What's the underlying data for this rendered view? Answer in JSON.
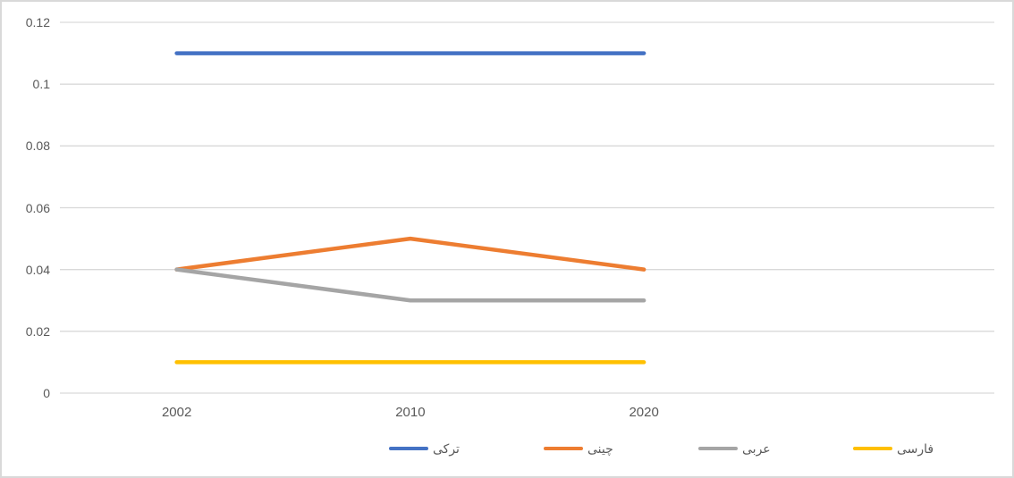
{
  "chart": {
    "background_color": "#FFFFFF",
    "border_color": "#D9D9D9",
    "gridline_color": "#D9D9D9",
    "axis_text_color": "#595959"
  },
  "chart_data": {
    "type": "line",
    "title": "",
    "xlabel": "",
    "ylabel": "",
    "categories": [
      "2002",
      "2010",
      "2020"
    ],
    "series": [
      {
        "name": "ترکی",
        "values": [
          0.11,
          0.11,
          0.11
        ],
        "color": "#4472C4"
      },
      {
        "name": "چینی",
        "values": [
          0.04,
          0.05,
          0.04
        ],
        "color": "#ED7D31"
      },
      {
        "name": "عربی",
        "values": [
          0.04,
          0.03,
          0.03
        ],
        "color": "#A5A5A5"
      },
      {
        "name": "فارسی",
        "values": [
          0.01,
          0.01,
          0.01
        ],
        "color": "#FFC000"
      }
    ],
    "ylim": [
      0,
      0.12
    ],
    "ytick_step": 0.02,
    "ytick_labels": [
      "0",
      "0.02",
      "0.04",
      "0.06",
      "0.08",
      "0.1",
      "0.12"
    ],
    "grid": true,
    "legend_position": "bottom",
    "x_slot_count": 4
  }
}
